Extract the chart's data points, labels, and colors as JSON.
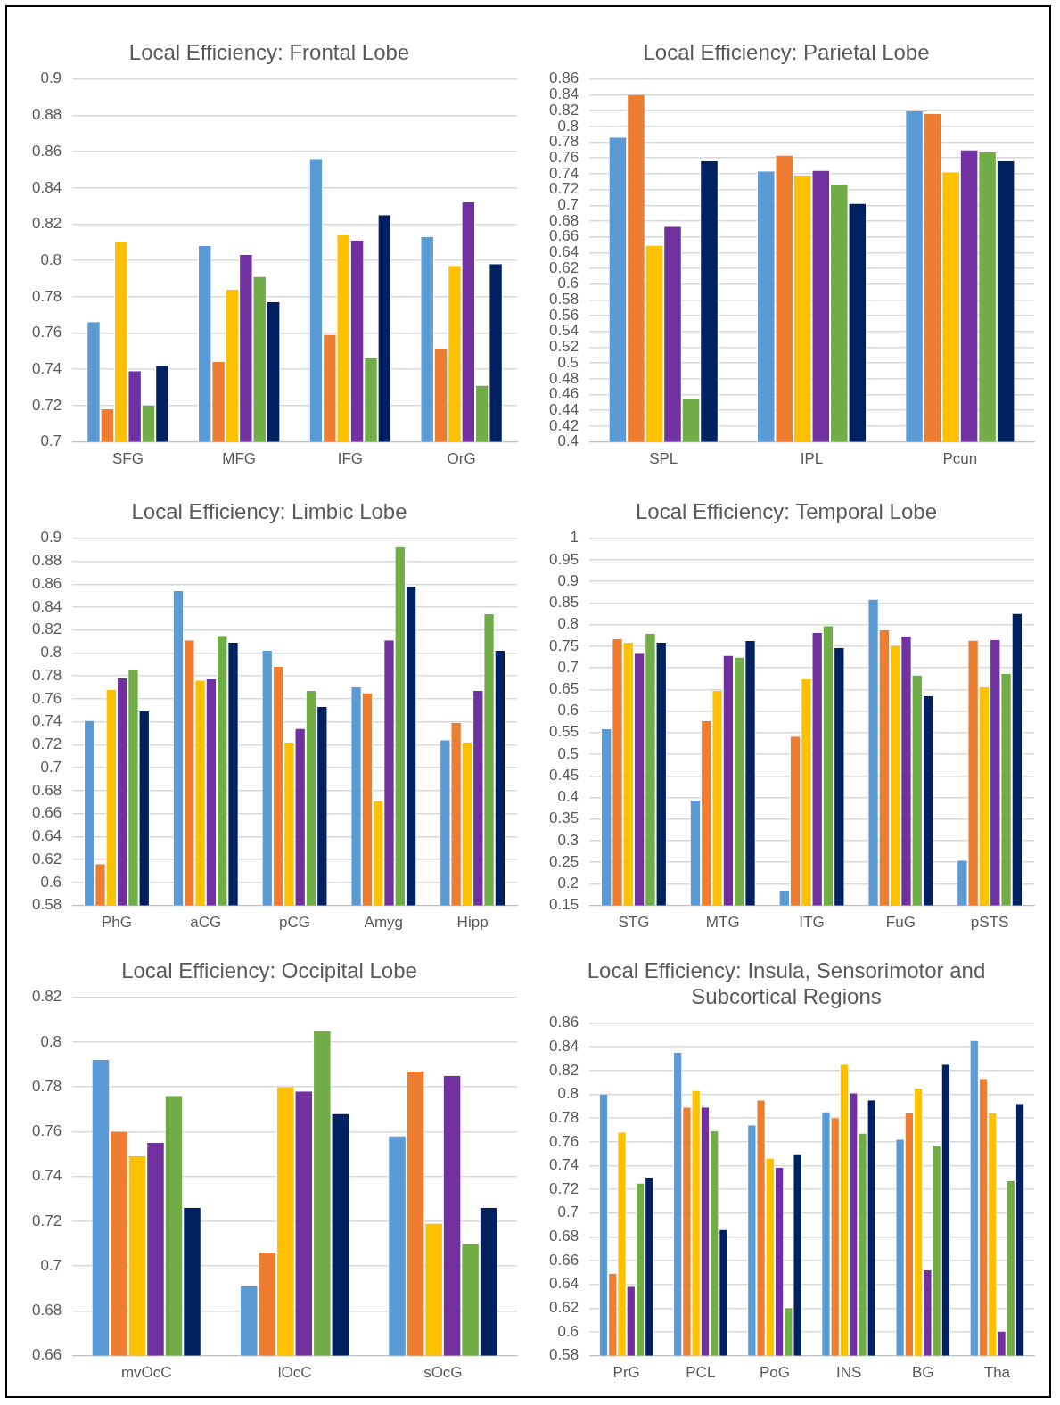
{
  "chart_data": [
    {
      "type": "bar",
      "title": "Local Efficiency: Frontal Lobe",
      "categories": [
        "SFG",
        "MFG",
        "IFG",
        "OrG"
      ],
      "ylim": [
        0.7,
        0.9
      ],
      "yticks": [
        0.7,
        0.72,
        0.74,
        0.76,
        0.78,
        0.8,
        0.82,
        0.84,
        0.86,
        0.88,
        0.9
      ],
      "grid": "y",
      "legend": false,
      "series": [
        {
          "color": "#5b9bd5",
          "values": [
            0.766,
            0.808,
            0.856,
            0.813
          ]
        },
        {
          "color": "#ed7d31",
          "values": [
            0.718,
            0.744,
            0.759,
            0.751
          ]
        },
        {
          "color": "#ffc000",
          "values": [
            0.81,
            0.784,
            0.814,
            0.797
          ]
        },
        {
          "color": "#7030a0",
          "values": [
            0.739,
            0.803,
            0.811,
            0.832
          ]
        },
        {
          "color": "#70ad47",
          "values": [
            0.72,
            0.791,
            0.746,
            0.731
          ]
        },
        {
          "color": "#002060",
          "values": [
            0.742,
            0.777,
            0.825,
            0.798
          ]
        }
      ]
    },
    {
      "type": "bar",
      "title": "Local Efficiency: Parietal Lobe",
      "categories": [
        "SPL",
        "IPL",
        "Pcun"
      ],
      "ylim": [
        0.4,
        0.86
      ],
      "yticks": [
        0.4,
        0.42,
        0.44,
        0.46,
        0.48,
        0.5,
        0.52,
        0.54,
        0.56,
        0.58,
        0.6,
        0.62,
        0.64,
        0.66,
        0.68,
        0.7,
        0.72,
        0.74,
        0.76,
        0.78,
        0.8,
        0.82,
        0.84,
        0.86
      ],
      "grid": "y",
      "legend": false,
      "series": [
        {
          "color": "#5b9bd5",
          "values": [
            0.786,
            0.743,
            0.819
          ]
        },
        {
          "color": "#ed7d31",
          "values": [
            0.84,
            0.763,
            0.816
          ]
        },
        {
          "color": "#ffc000",
          "values": [
            0.649,
            0.738,
            0.742
          ]
        },
        {
          "color": "#7030a0",
          "values": [
            0.673,
            0.744,
            0.77
          ]
        },
        {
          "color": "#70ad47",
          "values": [
            0.454,
            0.726,
            0.767
          ]
        },
        {
          "color": "#002060",
          "values": [
            0.756,
            0.702,
            0.756
          ]
        }
      ]
    },
    {
      "type": "bar",
      "title": "Local Efficiency: Limbic Lobe",
      "categories": [
        "PhG",
        "aCG",
        "pCG",
        "Amyg",
        "Hipp"
      ],
      "ylim": [
        0.58,
        0.9
      ],
      "yticks": [
        0.58,
        0.6,
        0.62,
        0.64,
        0.66,
        0.68,
        0.7,
        0.72,
        0.74,
        0.76,
        0.78,
        0.8,
        0.82,
        0.84,
        0.86,
        0.88,
        0.9
      ],
      "grid": "y",
      "legend": false,
      "series": [
        {
          "color": "#5b9bd5",
          "values": [
            0.741,
            0.854,
            0.802,
            0.77,
            0.724
          ]
        },
        {
          "color": "#ed7d31",
          "values": [
            0.616,
            0.811,
            0.788,
            0.765,
            0.739
          ]
        },
        {
          "color": "#ffc000",
          "values": [
            0.768,
            0.776,
            0.722,
            0.671,
            0.722
          ]
        },
        {
          "color": "#7030a0",
          "values": [
            0.778,
            0.777,
            0.734,
            0.811,
            0.767
          ]
        },
        {
          "color": "#70ad47",
          "values": [
            0.785,
            0.815,
            0.767,
            0.892,
            0.834
          ]
        },
        {
          "color": "#002060",
          "values": [
            0.749,
            0.809,
            0.753,
            0.858,
            0.802
          ]
        }
      ]
    },
    {
      "type": "bar",
      "title": "Local Efficiency: Temporal Lobe",
      "categories": [
        "STG",
        "MTG",
        "ITG",
        "FuG",
        "pSTS"
      ],
      "ylim": [
        0.15,
        1
      ],
      "yticks": [
        0.15,
        0.2,
        0.25,
        0.3,
        0.35,
        0.4,
        0.45,
        0.5,
        0.55,
        0.6,
        0.65,
        0.7,
        0.75,
        0.8,
        0.85,
        0.9,
        0.95,
        1
      ],
      "grid": "y",
      "legend": false,
      "series": [
        {
          "color": "#5b9bd5",
          "values": [
            0.558,
            0.393,
            0.184,
            0.858,
            0.254
          ]
        },
        {
          "color": "#ed7d31",
          "values": [
            0.767,
            0.577,
            0.541,
            0.787,
            0.763
          ]
        },
        {
          "color": "#ffc000",
          "values": [
            0.758,
            0.647,
            0.674,
            0.751,
            0.655
          ]
        },
        {
          "color": "#7030a0",
          "values": [
            0.733,
            0.728,
            0.781,
            0.773,
            0.765
          ]
        },
        {
          "color": "#70ad47",
          "values": [
            0.779,
            0.724,
            0.797,
            0.683,
            0.686
          ]
        },
        {
          "color": "#002060",
          "values": [
            0.758,
            0.762,
            0.746,
            0.635,
            0.825
          ]
        }
      ]
    },
    {
      "type": "bar",
      "title": "Local Efficiency: Occipital Lobe",
      "categories": [
        "mvOcC",
        "lOcC",
        "sOcG"
      ],
      "ylim": [
        0.66,
        0.82
      ],
      "yticks": [
        0.66,
        0.68,
        0.7,
        0.72,
        0.74,
        0.76,
        0.78,
        0.8,
        0.82
      ],
      "grid": "y",
      "legend": false,
      "series": [
        {
          "color": "#5b9bd5",
          "values": [
            0.792,
            0.691,
            0.758
          ]
        },
        {
          "color": "#ed7d31",
          "values": [
            0.76,
            0.706,
            0.787
          ]
        },
        {
          "color": "#ffc000",
          "values": [
            0.749,
            0.78,
            0.719
          ]
        },
        {
          "color": "#7030a0",
          "values": [
            0.755,
            0.778,
            0.785
          ]
        },
        {
          "color": "#70ad47",
          "values": [
            0.776,
            0.805,
            0.71
          ]
        },
        {
          "color": "#002060",
          "values": [
            0.726,
            0.768,
            0.726
          ]
        }
      ]
    },
    {
      "type": "bar",
      "title": "Local Efficiency: Insula, Sensorimotor and Subcortical Regions",
      "categories": [
        "PrG",
        "PCL",
        "PoG",
        "INS",
        "BG",
        "Tha"
      ],
      "ylim": [
        0.58,
        0.86
      ],
      "yticks": [
        0.58,
        0.6,
        0.62,
        0.64,
        0.66,
        0.68,
        0.7,
        0.72,
        0.74,
        0.76,
        0.78,
        0.8,
        0.82,
        0.84,
        0.86
      ],
      "grid": "y",
      "legend": false,
      "series": [
        {
          "color": "#5b9bd5",
          "values": [
            0.8,
            0.835,
            0.774,
            0.785,
            0.762,
            0.845
          ]
        },
        {
          "color": "#ed7d31",
          "values": [
            0.649,
            0.789,
            0.795,
            0.78,
            0.784,
            0.813
          ]
        },
        {
          "color": "#ffc000",
          "values": [
            0.768,
            0.803,
            0.746,
            0.825,
            0.805,
            0.784
          ]
        },
        {
          "color": "#7030a0",
          "values": [
            0.638,
            0.789,
            0.738,
            0.801,
            0.652,
            0.6
          ]
        },
        {
          "color": "#70ad47",
          "values": [
            0.725,
            0.769,
            0.62,
            0.767,
            0.757,
            0.727
          ]
        },
        {
          "color": "#002060",
          "values": [
            0.73,
            0.686,
            0.749,
            0.795,
            0.825,
            0.792
          ]
        }
      ]
    }
  ]
}
